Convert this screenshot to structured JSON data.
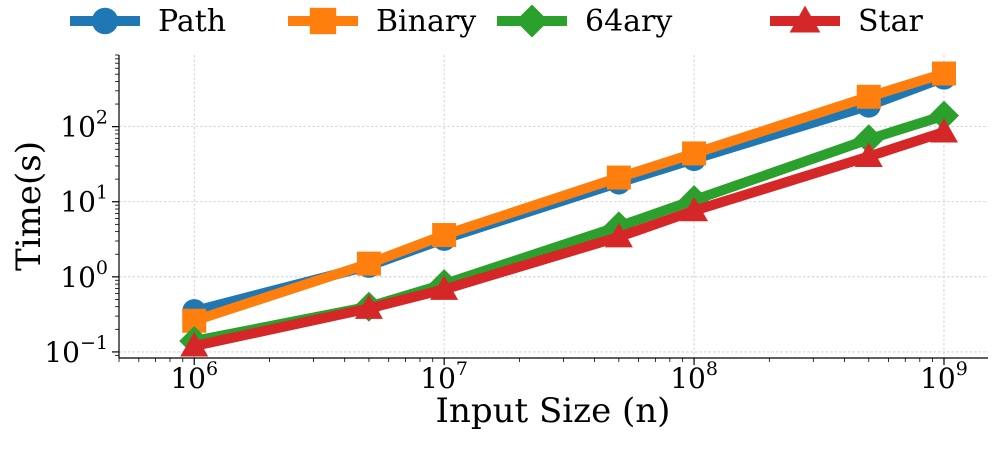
{
  "chart_data": {
    "type": "line",
    "title": "",
    "xlabel": "Input Size (n)",
    "ylabel": "Time(s)",
    "xscale": "log",
    "yscale": "log",
    "xlim": [
      500000,
      1500000000
    ],
    "ylim": [
      0.083,
      900
    ],
    "grid": true,
    "legend_position": "top",
    "x_ticks": [
      {
        "value": 1000000,
        "base": "10",
        "exp": "6"
      },
      {
        "value": 10000000,
        "base": "10",
        "exp": "7"
      },
      {
        "value": 100000000,
        "base": "10",
        "exp": "8"
      },
      {
        "value": 1000000000,
        "base": "10",
        "exp": "9"
      }
    ],
    "y_ticks": [
      {
        "value": 0.1,
        "base": "10",
        "exp": "−1"
      },
      {
        "value": 1,
        "base": "10",
        "exp": "0"
      },
      {
        "value": 10,
        "base": "10",
        "exp": "1"
      },
      {
        "value": 100,
        "base": "10",
        "exp": "2"
      }
    ],
    "x": [
      1000000,
      5000000,
      10000000,
      50000000,
      100000000,
      500000000,
      1000000000
    ],
    "series": [
      {
        "name": "Path",
        "color": "#1f77b4",
        "marker": "circle",
        "values": [
          0.35,
          1.4,
          3.2,
          18,
          37,
          190,
          450
        ]
      },
      {
        "name": "Binary",
        "color": "#ff7f0e",
        "marker": "square",
        "values": [
          0.26,
          1.5,
          3.6,
          21,
          44,
          250,
          510
        ]
      },
      {
        "name": "64ary",
        "color": "#2ca02c",
        "marker": "diamond",
        "values": [
          0.14,
          0.4,
          0.8,
          4.7,
          10.5,
          68,
          140
        ]
      },
      {
        "name": "Star",
        "color": "#d62728",
        "marker": "triangle",
        "values": [
          0.12,
          0.38,
          0.68,
          3.4,
          7.6,
          40,
          85
        ]
      }
    ]
  }
}
